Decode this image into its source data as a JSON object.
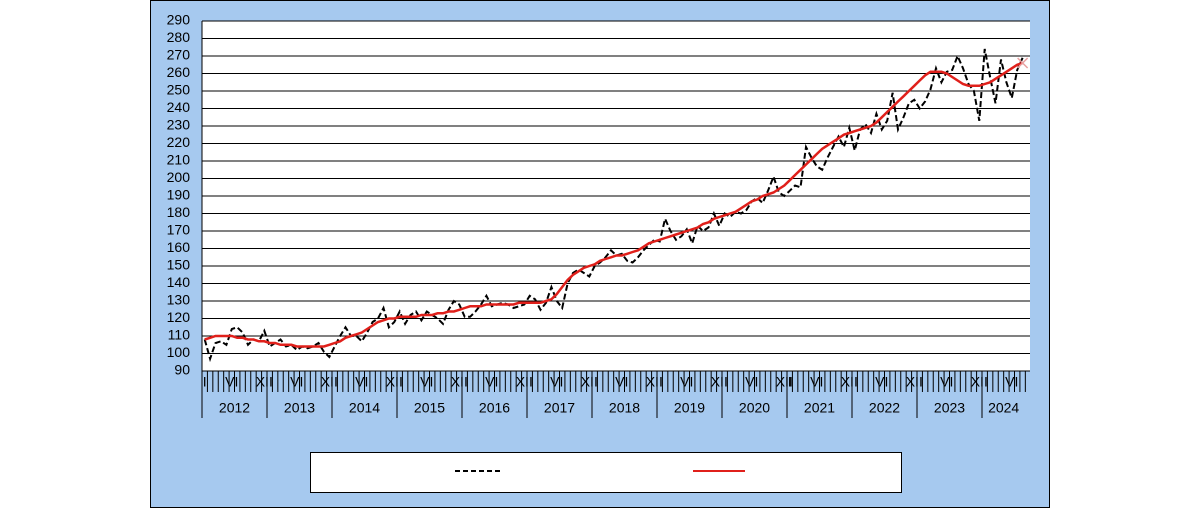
{
  "chart_data": {
    "type": "line",
    "ylim": [
      90,
      290
    ],
    "yticks": [
      90,
      100,
      110,
      120,
      130,
      140,
      150,
      160,
      170,
      180,
      190,
      200,
      210,
      220,
      230,
      240,
      250,
      260,
      270,
      280,
      290
    ],
    "grid": true,
    "categories": [
      "I",
      null,
      null,
      null,
      null,
      "VI",
      null,
      null,
      null,
      null,
      null,
      "XII",
      null,
      null,
      null,
      null,
      null,
      "VI",
      null,
      null,
      null,
      null,
      null,
      "XII",
      null,
      null,
      null,
      null,
      null,
      "VI",
      null,
      null,
      null,
      null,
      null,
      "XII",
      null,
      null,
      null,
      null,
      null,
      "VI",
      null,
      null,
      null,
      null,
      null,
      "XII",
      null,
      null,
      null,
      null,
      null,
      "VI",
      null,
      null,
      null,
      null,
      null,
      "XII",
      null,
      null,
      null,
      null,
      null,
      "VI",
      null,
      null,
      null,
      null,
      null,
      "XII",
      null,
      null,
      null,
      null,
      null,
      "VI",
      null,
      null,
      null,
      null,
      null,
      "XII",
      null,
      null,
      null,
      null,
      null,
      "VI",
      null,
      null,
      null,
      null,
      null,
      "XII",
      null,
      null,
      null,
      null,
      null,
      "VI",
      null,
      null,
      null,
      null,
      null,
      "XII",
      "I",
      null,
      null,
      null,
      null,
      "VI",
      null,
      null,
      null,
      null,
      null,
      "XII",
      null,
      null,
      null,
      null,
      null,
      "VI",
      null,
      null,
      null,
      null,
      null,
      "XII",
      null,
      null,
      null,
      null,
      null,
      "VI",
      null,
      null,
      null,
      null,
      null,
      "XII",
      null,
      null,
      null,
      null,
      null,
      "VI",
      null,
      null
    ],
    "year_labels": [
      "2012",
      "2013",
      "2014",
      "2015",
      "2016",
      "2017",
      "2018",
      "2019",
      "2020",
      "2021",
      "2022",
      "2023",
      "2024"
    ],
    "series": [
      {
        "color": "#000000",
        "dashed": true,
        "values": [
          108,
          97,
          106,
          107,
          105,
          114,
          115,
          112,
          105,
          108,
          107,
          113,
          104,
          106,
          108,
          104,
          105,
          102,
          104,
          103,
          104,
          106,
          101,
          98,
          104,
          110,
          115,
          110,
          110,
          107,
          112,
          118,
          120,
          126,
          115,
          118,
          124,
          117,
          122,
          124,
          119,
          124,
          122,
          120,
          117,
          125,
          130,
          128,
          121,
          121,
          124,
          128,
          133,
          127,
          128,
          129,
          128,
          126,
          127,
          128,
          133,
          131,
          125,
          129,
          138,
          130,
          126,
          140,
          146,
          148,
          146,
          144,
          150,
          152,
          155,
          159,
          156,
          157,
          153,
          152,
          155,
          159,
          162,
          165,
          164,
          177,
          170,
          165,
          167,
          171,
          163,
          173,
          170,
          172,
          180,
          173,
          180,
          178,
          181,
          180,
          182,
          187,
          189,
          186,
          193,
          201,
          192,
          190,
          193,
          196,
          195,
          218,
          212,
          207,
          205,
          212,
          218,
          224,
          218,
          229,
          216,
          228,
          231,
          226,
          237,
          228,
          233,
          249,
          228,
          235,
          243,
          245,
          240,
          244,
          251,
          263,
          255,
          261,
          262,
          270,
          263,
          254,
          250,
          233,
          274,
          258,
          243,
          268,
          255,
          246,
          262,
          269
        ]
      },
      {
        "color": "#e0201b",
        "dashed": false,
        "values": [
          108,
          109,
          110,
          110,
          110,
          110,
          109,
          109,
          108,
          108,
          107,
          107,
          106,
          106,
          105,
          105,
          105,
          104,
          104,
          104,
          104,
          104,
          104,
          105,
          106,
          107,
          109,
          110,
          111,
          112,
          114,
          116,
          118,
          119,
          120,
          120,
          121,
          121,
          121,
          121,
          122,
          122,
          122,
          123,
          123,
          124,
          124,
          125,
          126,
          127,
          127,
          127,
          128,
          128,
          128,
          128,
          128,
          128,
          129,
          129,
          129,
          129,
          129,
          130,
          131,
          134,
          138,
          142,
          145,
          147,
          149,
          150,
          151,
          153,
          154,
          155,
          156,
          156,
          157,
          158,
          159,
          161,
          163,
          164,
          165,
          166,
          167,
          168,
          169,
          170,
          171,
          172,
          174,
          175,
          177,
          178,
          179,
          180,
          181,
          183,
          185,
          187,
          188,
          190,
          191,
          192,
          194,
          196,
          199,
          202,
          205,
          208,
          211,
          214,
          217,
          219,
          221,
          223,
          225,
          226,
          227,
          228,
          229,
          230,
          232,
          235,
          238,
          241,
          244,
          247,
          250,
          253,
          256,
          259,
          261,
          261,
          261,
          260,
          258,
          256,
          254,
          253,
          253,
          253,
          254,
          255,
          257,
          259,
          261,
          263,
          265,
          266
        ]
      }
    ]
  }
}
